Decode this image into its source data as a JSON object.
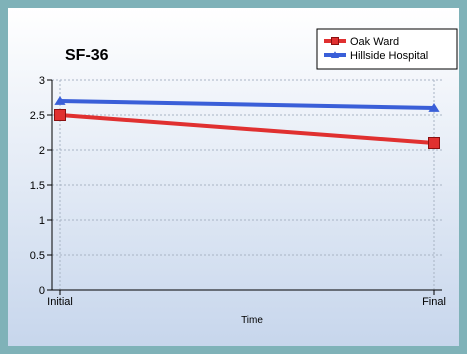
{
  "chart_data": {
    "type": "line",
    "title": "SF-36",
    "xlabel": "Time",
    "ylabel": "",
    "categories": [
      "Initial",
      "Final"
    ],
    "ylim": [
      0,
      3
    ],
    "yticks": [
      "0",
      "0.5",
      "1",
      "1.5",
      "2",
      "2.5",
      "3"
    ],
    "grid": true,
    "legend_position": "top-right",
    "series": [
      {
        "name": "Oak Ward",
        "values": [
          2.5,
          2.1
        ],
        "color": "#e03030",
        "marker": "square"
      },
      {
        "name": "Hillside Hospital",
        "values": [
          2.7,
          2.6
        ],
        "color": "#3a5fd8",
        "marker": "triangle"
      }
    ]
  }
}
